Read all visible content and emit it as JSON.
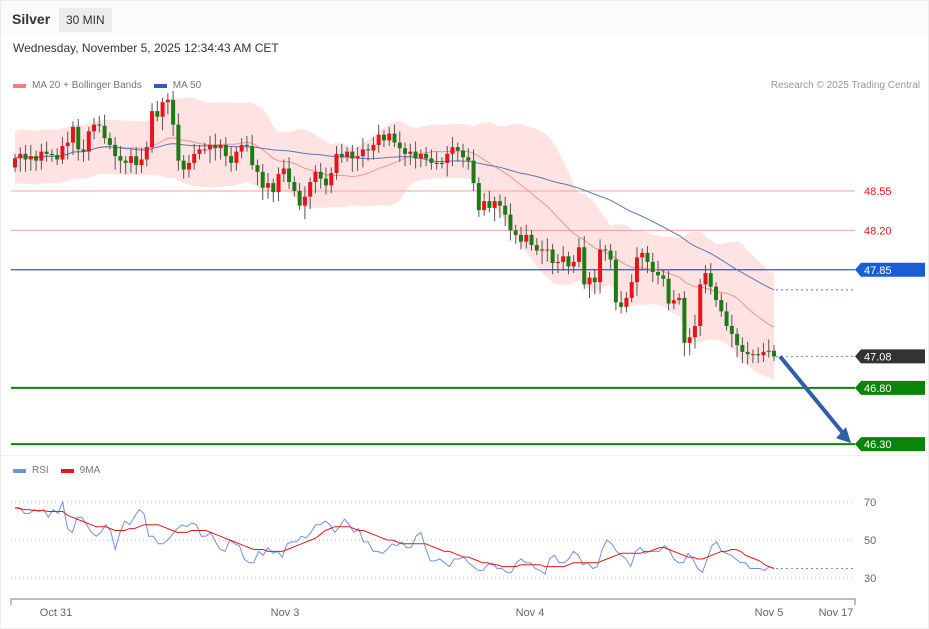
{
  "header": {
    "instrument": "Silver",
    "timeframe": "30 MIN",
    "datetime": "Wednesday, November 5, 2025 12:34:43 AM CET",
    "credit": "Research © 2025 Trading Central"
  },
  "legend_main": [
    {
      "label": "MA 20 + Bollinger Bands",
      "color": "#f77b7b"
    },
    {
      "label": "MA 50",
      "color": "#2f5fa8"
    }
  ],
  "legend_rsi": [
    {
      "label": "RSI",
      "color": "#6f93e0"
    },
    {
      "label": "9MA",
      "color": "#e8191a"
    }
  ],
  "colors": {
    "bull_candle": "#e8141a",
    "bear_candle": "#1e7a14",
    "wick": "#555555",
    "band_fill": "#ffe3e3",
    "ma20": "#f79191",
    "ma50": "#5a76b8",
    "resistance": "#f5a0a0",
    "resistance_text": "#e8141a",
    "pivot": "#1a5ed6",
    "support": "#0a850a",
    "last_price": "#333333",
    "arrow": "#2f5fa8"
  },
  "chart_data": [
    {
      "type": "candlestick",
      "title": "Silver 30 MIN",
      "price_range": [
        46.1,
        49.3
      ],
      "levels": [
        {
          "price": 48.55,
          "label": "48.55",
          "kind": "resistance"
        },
        {
          "price": 48.2,
          "label": "48.20",
          "kind": "resistance"
        },
        {
          "price": 47.85,
          "label": "47.85",
          "kind": "pivot"
        },
        {
          "price": 47.08,
          "label": "47.08",
          "kind": "last"
        },
        {
          "price": 46.8,
          "label": "46.80",
          "kind": "support"
        },
        {
          "price": 46.3,
          "label": "46.30",
          "kind": "support"
        }
      ],
      "forecast_arrow": {
        "from": 47.08,
        "to": 46.3
      },
      "x_labels": [
        "Oct 31",
        "Nov 3",
        "Nov 4",
        "Nov 5",
        "Nov 17"
      ],
      "close_path": [
        48.84,
        48.88,
        48.83,
        48.86,
        48.82,
        48.9,
        48.88,
        48.87,
        48.83,
        48.95,
        48.98,
        49.12,
        48.92,
        48.9,
        49.08,
        49.14,
        49.13,
        49.02,
        48.96,
        48.86,
        48.82,
        48.8,
        48.86,
        48.78,
        48.83,
        48.94,
        49.26,
        49.21,
        49.34,
        49.36,
        49.14,
        48.82,
        48.74,
        48.8,
        48.88,
        48.92,
        48.92,
        48.96,
        48.93,
        48.96,
        48.86,
        48.8,
        48.9,
        48.96,
        48.95,
        48.78,
        48.72,
        48.58,
        48.62,
        48.54,
        48.7,
        48.75,
        48.63,
        48.55,
        48.42,
        48.5,
        48.63,
        48.72,
        48.66,
        48.6,
        48.71,
        48.88,
        48.85,
        48.9,
        48.84,
        48.86,
        48.92,
        48.91,
        48.96,
        49.05,
        49.0,
        49.06,
        48.98,
        48.93,
        48.88,
        48.9,
        48.84,
        48.88,
        48.84,
        48.8,
        48.79,
        48.8,
        48.88,
        48.94,
        48.91,
        48.85,
        48.82,
        48.62,
        48.38,
        48.46,
        48.4,
        48.46,
        48.42,
        48.34,
        48.2,
        48.16,
        48.1,
        48.16,
        48.07,
        48.02,
        48.03,
        48.03,
        47.91,
        47.92,
        47.97,
        47.88,
        47.92,
        48.05,
        47.72,
        47.78,
        47.74,
        48.03,
        48.02,
        47.94,
        47.56,
        47.52,
        47.6,
        47.74,
        47.96,
        48.0,
        47.92,
        47.83,
        47.8,
        47.77,
        47.55,
        47.58,
        47.6,
        47.2,
        47.25,
        47.35,
        47.72
      ],
      "tail_path": [
        47.82,
        47.7,
        47.58,
        47.48,
        47.35,
        47.28,
        47.18,
        47.12,
        47.1,
        47.1,
        47.09,
        47.12,
        47.13,
        47.08
      ]
    },
    {
      "type": "line",
      "title": "RSI",
      "series": [
        "RSI",
        "9MA"
      ],
      "ylim": [
        24,
        78
      ],
      "yticks": [
        70,
        50,
        30
      ],
      "rsi": [
        67,
        67,
        64,
        64,
        66,
        65,
        66,
        62,
        66,
        64,
        70,
        56,
        54,
        62,
        62,
        58,
        54,
        52,
        54,
        58,
        55,
        45,
        54,
        60,
        58,
        62,
        66,
        64,
        52,
        52,
        48,
        48,
        50,
        53,
        56,
        58,
        57,
        59,
        58,
        52,
        52,
        54,
        49,
        45,
        44,
        50,
        48,
        47,
        40,
        38,
        38,
        44,
        42,
        46,
        43,
        44,
        41,
        48,
        49,
        49,
        52,
        51,
        54,
        58,
        58,
        60,
        58,
        54,
        57,
        61,
        58,
        54,
        56,
        49,
        49,
        44,
        44,
        43,
        45,
        48,
        47,
        49,
        46,
        46,
        52,
        54,
        46,
        39,
        39,
        40,
        38,
        36,
        40,
        40,
        41,
        38,
        36,
        34,
        34,
        37,
        38,
        35,
        35,
        33,
        33,
        38,
        40,
        38,
        38,
        35,
        34,
        32,
        40,
        42,
        38,
        38,
        40,
        44,
        42,
        37,
        38,
        35,
        36,
        45,
        50,
        48,
        44,
        42,
        40,
        36,
        44,
        46,
        43,
        44,
        44,
        44,
        47,
        45,
        40,
        38,
        38,
        43,
        40,
        35,
        33,
        40,
        47,
        49,
        44,
        43,
        42,
        40,
        38,
        38,
        35,
        35,
        35,
        34,
        36,
        35
      ],
      "ma9": [
        67,
        66.5,
        66,
        66,
        65.5,
        65.5,
        65.5,
        65,
        65,
        65,
        65,
        63,
        62,
        61,
        60,
        59,
        58,
        57,
        57,
        57,
        56,
        55,
        55,
        55,
        56,
        56,
        57,
        58,
        58,
        58,
        58,
        57,
        56,
        55,
        54,
        54,
        54,
        55,
        55,
        55,
        55,
        54,
        53,
        52,
        51,
        50,
        49,
        48,
        47,
        46,
        45,
        45,
        45,
        44,
        44,
        44,
        44,
        45,
        46,
        47,
        48,
        49,
        50,
        51,
        53,
        55,
        56,
        57,
        57,
        57,
        57,
        56,
        55,
        55,
        54,
        53,
        52,
        51,
        50,
        50,
        49,
        48,
        48,
        48,
        48,
        48,
        48,
        47,
        46,
        45,
        44,
        44,
        43,
        42,
        41,
        41,
        40,
        39,
        38,
        38,
        37,
        37,
        36,
        36,
        36,
        36,
        37,
        37,
        37,
        37,
        37,
        36,
        36,
        36,
        36,
        36,
        37,
        38,
        38,
        38,
        38,
        38,
        38,
        39,
        40,
        41,
        42,
        43,
        43,
        43,
        43,
        43,
        44,
        44,
        45,
        46,
        46,
        45,
        44,
        43,
        42,
        41,
        41,
        40,
        40,
        41,
        42,
        43,
        44,
        44,
        45,
        45,
        44,
        42,
        41,
        40,
        39,
        37,
        36,
        35
      ]
    }
  ]
}
